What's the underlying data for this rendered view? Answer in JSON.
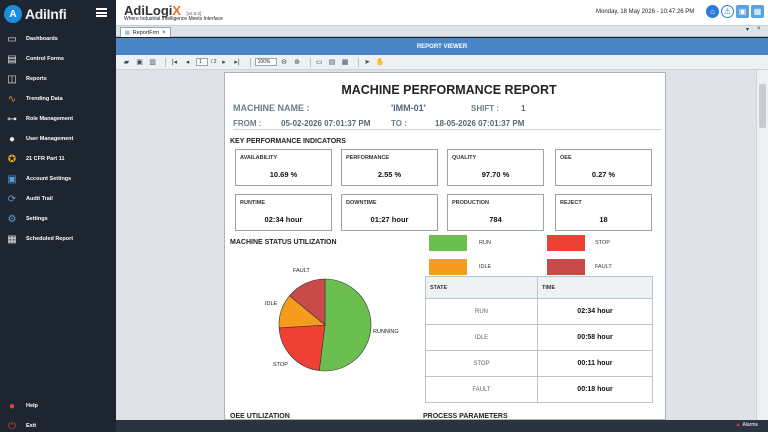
{
  "app": {
    "logo_text": "AdiInfi",
    "title": "AdiLogi",
    "title_x": "X",
    "version": "[v2.6.0]",
    "tagline": "Where Industrial Intelligence Meets Interface",
    "datetime": "Monday, 18 May 2026 - 10:47:26 PM"
  },
  "sidebar": {
    "items": [
      {
        "label": "Dashboards",
        "icon": "monitor-icon"
      },
      {
        "label": "Control Forms",
        "icon": "form-icon"
      },
      {
        "label": "Reports",
        "icon": "report-icon"
      },
      {
        "label": "Trending Data",
        "icon": "trend-icon"
      },
      {
        "label": "Role Management",
        "icon": "hierarchy-icon"
      },
      {
        "label": "User Management",
        "icon": "users-icon"
      },
      {
        "label": "21 CFR Part 11",
        "icon": "badge-icon"
      },
      {
        "label": "Account Settings",
        "icon": "account-icon"
      },
      {
        "label": "Audit Trail",
        "icon": "audit-icon"
      },
      {
        "label": "Settings",
        "icon": "gear-icon"
      },
      {
        "label": "Scheduled Report",
        "icon": "calendar-icon"
      }
    ],
    "help": "Help",
    "exit": "Exit"
  },
  "tabs": [
    {
      "label": "ReportFrm"
    }
  ],
  "viewer_title": "REPORT VIEWER",
  "toolbar": {
    "page_current": "1",
    "page_total": "/ 2",
    "zoom": "100%"
  },
  "report": {
    "title": "MACHINE PERFORMANCE REPORT",
    "machine_label": "MACHINE NAME :",
    "machine_value": "'IMM-01'",
    "shift_label": "SHIFT :",
    "shift_value": "1",
    "from_label": "FROM :",
    "from_value": "05-02-2026 07:01:37 PM",
    "to_label": "TO :",
    "to_value": "18-05-2026 07:01:37 PM",
    "kpi_heading": "KEY PERFORMANCE INDICATORS",
    "kpis": [
      {
        "label": "AVAILABILITY",
        "value": "10.69 %"
      },
      {
        "label": "PERFORMANCE",
        "value": "2.55 %"
      },
      {
        "label": "QUALITY",
        "value": "97.70 %"
      },
      {
        "label": "OEE",
        "value": "0.27 %"
      },
      {
        "label": "RUNTIME",
        "value": "02:34 hour"
      },
      {
        "label": "DOWNTIME",
        "value": "01:27 hour"
      },
      {
        "label": "PRODUCTION",
        "value": "784"
      },
      {
        "label": "REJECT",
        "value": "18"
      }
    ],
    "status_heading": "MACHINE STATUS UTILIZATION",
    "legend": [
      {
        "label": "RUN",
        "color": "#6bbf4e"
      },
      {
        "label": "STOP",
        "color": "#ee4035"
      },
      {
        "label": "IDLE",
        "color": "#f59d1b"
      },
      {
        "label": "FAULT",
        "color": "#c94a4a"
      }
    ],
    "pie_labels": {
      "running": "RUNNING",
      "stop": "STOP",
      "idle": "IDLE",
      "fault": "FAULT"
    },
    "table": {
      "headers": [
        "STATE",
        "TIME"
      ],
      "rows": [
        {
          "state": "RUN",
          "time": "02:34 hour"
        },
        {
          "state": "IDLE",
          "time": "00:58 hour"
        },
        {
          "state": "STOP",
          "time": "00:11 hour"
        },
        {
          "state": "FAULT",
          "time": "00:18 hour"
        }
      ]
    },
    "oee_heading": "OEE UTILIZATION",
    "process_heading": "PROCESS PARAMETERS"
  },
  "chart_data": {
    "type": "pie",
    "categories": [
      "RUNNING",
      "STOP",
      "IDLE",
      "FAULT"
    ],
    "values": [
      52,
      22,
      12,
      14
    ],
    "colors": [
      "#6bbf4e",
      "#ee4035",
      "#f59d1b",
      "#c94a4a"
    ]
  },
  "status": {
    "alarms": "Alarms"
  }
}
